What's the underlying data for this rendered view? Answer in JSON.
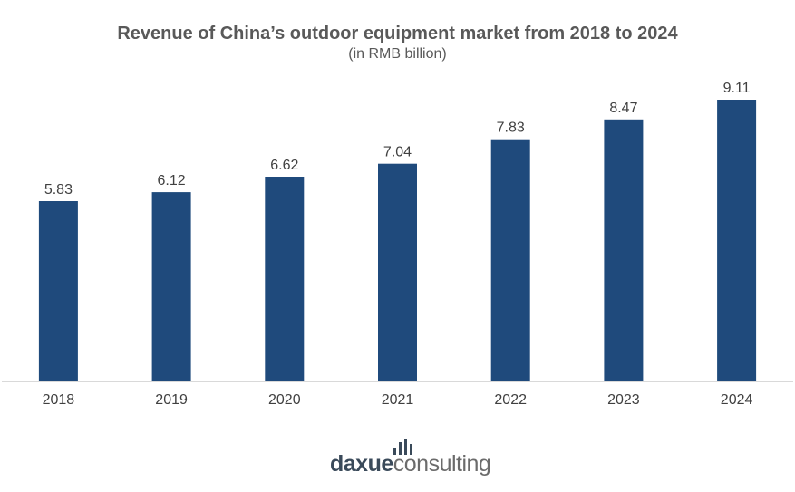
{
  "chart_data": {
    "type": "bar",
    "title": "Revenue of China’s outdoor equipment market from 2018 to 2024",
    "subtitle": "(in RMB billion)",
    "categories": [
      "2018",
      "2019",
      "2020",
      "2021",
      "2022",
      "2023",
      "2024"
    ],
    "values": [
      5.83,
      6.12,
      6.62,
      7.04,
      7.83,
      8.47,
      9.11
    ],
    "value_labels": [
      "5.83",
      "6.12",
      "6.62",
      "7.04",
      "7.83",
      "8.47",
      "9.11"
    ],
    "ylim": [
      0,
      9.11
    ],
    "grid": false,
    "bar_color": "#1f4a7c",
    "axis_color": "#d9d9d9",
    "label_color": "#404040"
  },
  "branding": {
    "logo_part1": "daxue",
    "logo_part2": "consulting",
    "logo_icon": "bar-chart-icon"
  }
}
